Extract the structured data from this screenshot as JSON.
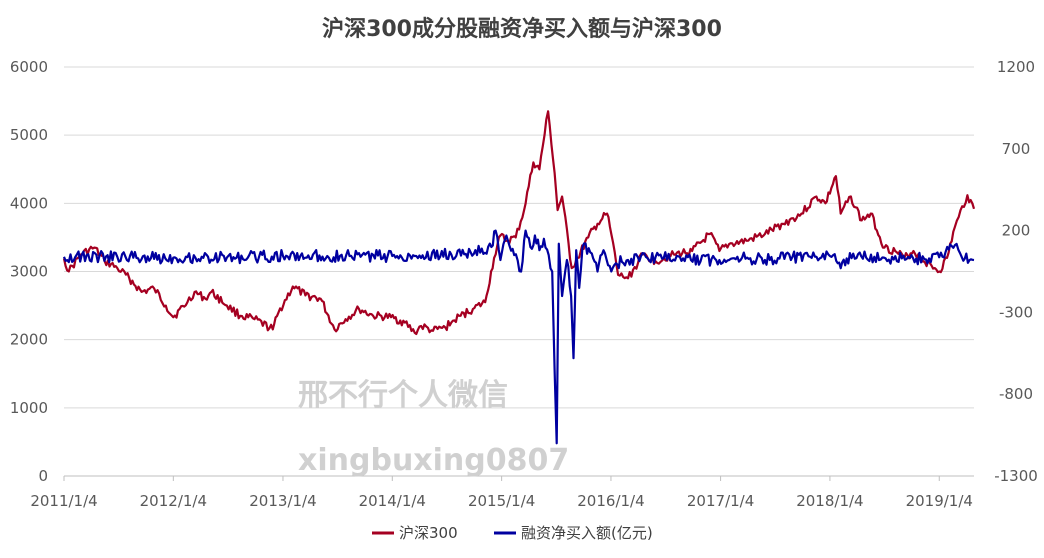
{
  "chart_data": {
    "type": "line",
    "title": "沪深300成分股融资净买入额与沪深300",
    "xlabel": "",
    "ylabel": "",
    "x_tick_labels": [
      "2011/1/4",
      "2012/1/4",
      "2013/1/4",
      "2014/1/4",
      "2015/1/4",
      "2016/1/4",
      "2017/1/4",
      "2018/1/4",
      "2019/1/4"
    ],
    "x_range": [
      "2011/1/4",
      "2019/4/30"
    ],
    "y_left": {
      "min": 0,
      "max": 6000,
      "ticks": [
        "0",
        "1000",
        "2000",
        "3000",
        "4000",
        "5000",
        "6000"
      ]
    },
    "y_right": {
      "min": -1300,
      "max": 1200,
      "ticks": [
        "-1300",
        "-800",
        "-300",
        "200",
        "700",
        "1200"
      ]
    },
    "grid": "horizontal",
    "legend_position": "bottom",
    "series": [
      {
        "name": "沪深300",
        "axis": "left",
        "color": "#A50021",
        "points": [
          [
            "2011/1/4",
            3190
          ],
          [
            "2011/1/20",
            3000
          ],
          [
            "2011/3/1",
            3250
          ],
          [
            "2011/4/15",
            3350
          ],
          [
            "2011/5/20",
            3150
          ],
          [
            "2011/7/1",
            3050
          ],
          [
            "2011/8/10",
            2900
          ],
          [
            "2011/9/20",
            2700
          ],
          [
            "2011/11/1",
            2750
          ],
          [
            "2011/12/10",
            2500
          ],
          [
            "2012/1/4",
            2330
          ],
          [
            "2012/2/20",
            2550
          ],
          [
            "2012/3/15",
            2700
          ],
          [
            "2012/4/20",
            2600
          ],
          [
            "2012/5/10",
            2700
          ],
          [
            "2012/7/1",
            2500
          ],
          [
            "2012/8/15",
            2350
          ],
          [
            "2012/10/1",
            2300
          ],
          [
            "2012/12/1",
            2150
          ],
          [
            "2012/12/20",
            2400
          ],
          [
            "2013/2/6",
            2780
          ],
          [
            "2013/3/20",
            2650
          ],
          [
            "2013/5/10",
            2600
          ],
          [
            "2013/6/25",
            2150
          ],
          [
            "2013/8/1",
            2300
          ],
          [
            "2013/9/15",
            2450
          ],
          [
            "2013/11/1",
            2350
          ],
          [
            "2013/12/31",
            2330
          ],
          [
            "2014/2/15",
            2250
          ],
          [
            "2014/3/20",
            2100
          ],
          [
            "2014/4/10",
            2200
          ],
          [
            "2014/5/20",
            2130
          ],
          [
            "2014/6/30",
            2180
          ],
          [
            "2014/7/20",
            2250
          ],
          [
            "2014/8/20",
            2350
          ],
          [
            "2014/9/30",
            2450
          ],
          [
            "2014/11/10",
            2550
          ],
          [
            "2014/12/10",
            3200
          ],
          [
            "2014/12/31",
            3530
          ],
          [
            "2015/1/20",
            3450
          ],
          [
            "2015/2/20",
            3500
          ],
          [
            "2015/3/20",
            3900
          ],
          [
            "2015/4/20",
            4600
          ],
          [
            "2015/5/10",
            4500
          ],
          [
            "2015/6/8",
            5350
          ],
          [
            "2015/6/30",
            4450
          ],
          [
            "2015/7/10",
            3900
          ],
          [
            "2015/7/25",
            4100
          ],
          [
            "2015/8/26",
            3050
          ],
          [
            "2015/9/15",
            3200
          ],
          [
            "2015/10/20",
            3500
          ],
          [
            "2015/11/20",
            3700
          ],
          [
            "2015/12/22",
            3850
          ],
          [
            "2016/1/5",
            3550
          ],
          [
            "2016/1/28",
            2950
          ],
          [
            "2016/3/1",
            2900
          ],
          [
            "2016/4/20",
            3250
          ],
          [
            "2016/6/1",
            3150
          ],
          [
            "2016/8/1",
            3250
          ],
          [
            "2016/10/1",
            3300
          ],
          [
            "2016/11/29",
            3550
          ],
          [
            "2016/12/31",
            3300
          ],
          [
            "2017/2/1",
            3400
          ],
          [
            "2017/4/1",
            3450
          ],
          [
            "2017/6/1",
            3550
          ],
          [
            "2017/8/1",
            3700
          ],
          [
            "2017/10/1",
            3850
          ],
          [
            "2017/11/20",
            4100
          ],
          [
            "2017/12/20",
            4000
          ],
          [
            "2018/1/24",
            4400
          ],
          [
            "2018/2/9",
            3850
          ],
          [
            "2018/3/15",
            4100
          ],
          [
            "2018/4/20",
            3750
          ],
          [
            "2018/5/20",
            3850
          ],
          [
            "2018/7/5",
            3350
          ],
          [
            "2018/8/10",
            3300
          ],
          [
            "2018/9/10",
            3200
          ],
          [
            "2018/10/10",
            3300
          ],
          [
            "2018/11/1",
            3200
          ],
          [
            "2018/12/20",
            3050
          ],
          [
            "2019/1/4",
            3000
          ],
          [
            "2019/1/30",
            3200
          ],
          [
            "2019/2/25",
            3650
          ],
          [
            "2019/3/10",
            3800
          ],
          [
            "2019/4/8",
            4120
          ],
          [
            "2019/4/30",
            3920
          ]
        ]
      },
      {
        "name": "融资净买入额(亿元)",
        "axis": "right",
        "color": "#0000A0",
        "points": [
          [
            "2011/1/4",
            40
          ],
          [
            "2011/7/1",
            40
          ],
          [
            "2012/1/4",
            35
          ],
          [
            "2012/7/1",
            35
          ],
          [
            "2013/1/4",
            45
          ],
          [
            "2013/6/1",
            45
          ],
          [
            "2014/1/4",
            45
          ],
          [
            "2014/9/1",
            55
          ],
          [
            "2014/12/1",
            100
          ],
          [
            "2014/12/15",
            200
          ],
          [
            "2014/12/31",
            20
          ],
          [
            "2015/1/20",
            170
          ],
          [
            "2015/2/15",
            50
          ],
          [
            "2015/3/10",
            -50
          ],
          [
            "2015/3/25",
            200
          ],
          [
            "2015/4/10",
            100
          ],
          [
            "2015/4/25",
            170
          ],
          [
            "2015/5/10",
            80
          ],
          [
            "2015/5/25",
            150
          ],
          [
            "2015/6/10",
            50
          ],
          [
            "2015/6/22",
            -50
          ],
          [
            "2015/6/30",
            -650
          ],
          [
            "2015/7/7",
            -1100
          ],
          [
            "2015/7/14",
            120
          ],
          [
            "2015/7/25",
            -200
          ],
          [
            "2015/8/10",
            20
          ],
          [
            "2015/8/24",
            -200
          ],
          [
            "2015/9/1",
            -580
          ],
          [
            "2015/9/10",
            80
          ],
          [
            "2015/9/20",
            -150
          ],
          [
            "2015/10/1",
            100
          ],
          [
            "2015/11/1",
            60
          ],
          [
            "2015/11/20",
            -50
          ],
          [
            "2015/12/10",
            80
          ],
          [
            "2016/1/5",
            -50
          ],
          [
            "2016/1/20",
            0
          ],
          [
            "2016/3/1",
            20
          ],
          [
            "2016/6/1",
            40
          ],
          [
            "2016/9/1",
            30
          ],
          [
            "2016/12/31",
            20
          ],
          [
            "2017/3/1",
            40
          ],
          [
            "2017/6/1",
            20
          ],
          [
            "2017/9/1",
            40
          ],
          [
            "2017/12/1",
            30
          ],
          [
            "2018/1/15",
            50
          ],
          [
            "2018/2/9",
            -30
          ],
          [
            "2018/3/1",
            30
          ],
          [
            "2018/6/1",
            40
          ],
          [
            "2018/9/1",
            30
          ],
          [
            "2018/12/1",
            30
          ],
          [
            "2019/1/15",
            40
          ],
          [
            "2019/2/25",
            110
          ],
          [
            "2019/3/15",
            60
          ],
          [
            "2019/4/30",
            20
          ]
        ]
      }
    ],
    "watermark": [
      "邢不行个人微信",
      "xingbuxing0807"
    ]
  }
}
